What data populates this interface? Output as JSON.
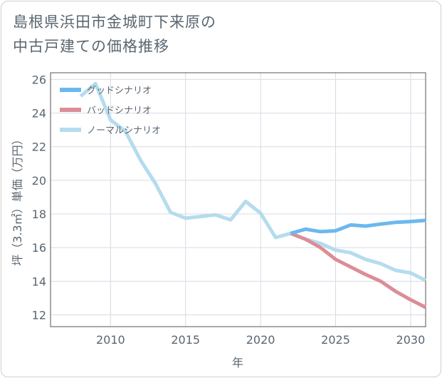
{
  "chart_data": {
    "type": "line",
    "title": [
      "島根県浜田市金城町下来原の",
      "中古戸建ての価格推移"
    ],
    "xlabel": "年",
    "ylabel": "坪（3.3㎡）単価（万円）",
    "xlim": [
      2006,
      2031
    ],
    "ylim": [
      11.3,
      26.4
    ],
    "x_ticks": [
      2010,
      2015,
      2020,
      2025,
      2030
    ],
    "y_ticks": [
      12,
      14,
      16,
      18,
      20,
      22,
      24,
      26
    ],
    "grid": true,
    "legend_position": "top-left",
    "series": [
      {
        "name": "グッドシナリオ",
        "color": "#6cb8ee",
        "x": [
          2022,
          2023,
          2024,
          2025,
          2026,
          2027,
          2028,
          2029,
          2030,
          2031
        ],
        "values": [
          16.85,
          17.1,
          16.95,
          17.0,
          17.35,
          17.28,
          17.4,
          17.5,
          17.55,
          17.62
        ]
      },
      {
        "name": "バッドシナリオ",
        "color": "#dc8d97",
        "x": [
          2022,
          2023,
          2024,
          2025,
          2026,
          2027,
          2028,
          2029,
          2030,
          2031
        ],
        "values": [
          16.85,
          16.5,
          16.0,
          15.3,
          14.85,
          14.4,
          14.0,
          13.4,
          12.9,
          12.45
        ]
      },
      {
        "name": "ノーマルシナリオ",
        "color": "#b5dcee",
        "x": [
          2008,
          2009,
          2010,
          2011,
          2012,
          2013,
          2014,
          2015,
          2016,
          2017,
          2018,
          2019,
          2020,
          2021,
          2022,
          2023,
          2024,
          2025,
          2026,
          2027,
          2028,
          2029,
          2030,
          2031
        ],
        "values": [
          25.0,
          25.75,
          23.6,
          22.9,
          21.2,
          19.8,
          18.1,
          17.75,
          17.85,
          17.95,
          17.65,
          18.75,
          18.05,
          16.6,
          16.85,
          16.5,
          16.25,
          15.85,
          15.7,
          15.3,
          15.05,
          14.65,
          14.5,
          14.05
        ]
      }
    ]
  }
}
